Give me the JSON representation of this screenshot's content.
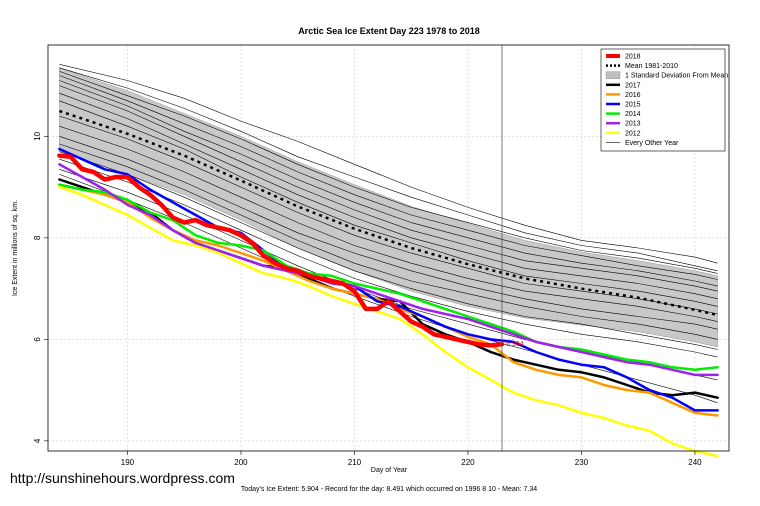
{
  "watermark": "http://sunshinehours.wordpress.com",
  "chart_data": {
    "type": "line",
    "title": "Arctic Sea Ice Extent Day 223 1978 to 2018",
    "xlabel": "Day of Year",
    "ylabel": "Ice Extent in millions of sq. km.",
    "subtitle": "Today's Ice Extent: 5.904  - Record for the day: 8.491 which occurred on 1996 8 10  - Mean: 7.34",
    "xlim": [
      183,
      243
    ],
    "ylim": [
      3.8,
      11.8
    ],
    "xticks": [
      190,
      200,
      210,
      220,
      230,
      240
    ],
    "yticks": [
      4,
      6,
      8,
      10
    ],
    "grid": true,
    "vline_x": 223,
    "current_label": "5.904",
    "legend_position": "top-right",
    "legend": [
      {
        "label": "2018",
        "color": "#ff0000",
        "style": "solid",
        "width": 4
      },
      {
        "label": "Mean 1981-2010",
        "color": "#000000",
        "style": "dotted",
        "width": 2.5
      },
      {
        "label": "1 Standard Deviation From Mean",
        "color": "#bebebe",
        "style": "box",
        "width": 0
      },
      {
        "label": "2017",
        "color": "#000000",
        "style": "solid",
        "width": 2.5
      },
      {
        "label": "2016",
        "color": "#ff9900",
        "style": "solid",
        "width": 2.5
      },
      {
        "label": "2015",
        "color": "#0000ff",
        "style": "solid",
        "width": 2.5
      },
      {
        "label": "2014",
        "color": "#00ee00",
        "style": "solid",
        "width": 2.5
      },
      {
        "label": "2013",
        "color": "#a020f0",
        "style": "solid",
        "width": 2.5
      },
      {
        "label": "2012",
        "color": "#ffff00",
        "style": "solid",
        "width": 2.5
      },
      {
        "label": "Every Other Year",
        "color": "#000000",
        "style": "solid",
        "width": 0.6
      }
    ],
    "mean": {
      "x": [
        184,
        190,
        195,
        200,
        205,
        210,
        215,
        220,
        225,
        230,
        235,
        240,
        242
      ],
      "y": [
        10.5,
        10.05,
        9.62,
        9.13,
        8.62,
        8.18,
        7.8,
        7.48,
        7.2,
        7.0,
        6.82,
        6.58,
        6.48
      ]
    },
    "std_band": {
      "x": [
        184,
        190,
        195,
        200,
        205,
        210,
        215,
        220,
        225,
        230,
        235,
        240,
        242
      ],
      "upper": [
        11.35,
        10.9,
        10.45,
        10.0,
        9.5,
        9.05,
        8.62,
        8.28,
        7.95,
        7.72,
        7.55,
        7.35,
        7.25
      ],
      "lower": [
        9.7,
        9.25,
        8.85,
        8.35,
        7.8,
        7.35,
        6.95,
        6.65,
        6.42,
        6.28,
        6.15,
        5.95,
        5.85
      ]
    },
    "other_years": [
      {
        "x": [
          184,
          190,
          195,
          200,
          205,
          210,
          215,
          220,
          225,
          230,
          235,
          240,
          242
        ],
        "y": [
          11.42,
          11.1,
          10.75,
          10.3,
          9.9,
          9.45,
          9.0,
          8.6,
          8.25,
          7.95,
          7.8,
          7.62,
          7.5
        ]
      },
      {
        "x": [
          184,
          190,
          195,
          200,
          205,
          210,
          215,
          220,
          225,
          230,
          235,
          240,
          242
        ],
        "y": [
          11.35,
          10.95,
          10.55,
          10.1,
          9.6,
          9.2,
          8.8,
          8.45,
          8.1,
          7.85,
          7.7,
          7.45,
          7.35
        ]
      },
      {
        "x": [
          184,
          190,
          195,
          200,
          205,
          210,
          215,
          220,
          225,
          230,
          235,
          240,
          242
        ],
        "y": [
          11.28,
          10.8,
          10.4,
          9.95,
          9.45,
          9.0,
          8.6,
          8.3,
          8.0,
          7.75,
          7.6,
          7.4,
          7.3
        ]
      },
      {
        "x": [
          184,
          190,
          195,
          200,
          205,
          210,
          215,
          220,
          225,
          230,
          235,
          240,
          242
        ],
        "y": [
          11.2,
          10.7,
          10.25,
          9.8,
          9.3,
          8.85,
          8.45,
          8.15,
          7.85,
          7.65,
          7.45,
          7.28,
          7.18
        ]
      },
      {
        "x": [
          184,
          190,
          195,
          200,
          205,
          210,
          215,
          220,
          225,
          230,
          235,
          240,
          242
        ],
        "y": [
          11.1,
          10.6,
          10.1,
          9.65,
          9.15,
          8.7,
          8.3,
          8.0,
          7.7,
          7.5,
          7.35,
          7.15,
          7.05
        ]
      },
      {
        "x": [
          184,
          190,
          195,
          200,
          205,
          210,
          215,
          220,
          225,
          230,
          235,
          240,
          242
        ],
        "y": [
          11.0,
          10.5,
          10.0,
          9.5,
          9.0,
          8.55,
          8.15,
          7.85,
          7.55,
          7.4,
          7.25,
          7.05,
          6.95
        ]
      },
      {
        "x": [
          184,
          190,
          195,
          200,
          205,
          210,
          215,
          220,
          225,
          230,
          235,
          240,
          242
        ],
        "y": [
          10.85,
          10.35,
          9.85,
          9.35,
          8.85,
          8.4,
          8.0,
          7.7,
          7.4,
          7.25,
          7.1,
          6.9,
          6.8
        ]
      },
      {
        "x": [
          184,
          190,
          195,
          200,
          205,
          210,
          215,
          220,
          225,
          230,
          235,
          240,
          242
        ],
        "y": [
          10.7,
          10.2,
          9.75,
          9.2,
          8.7,
          8.25,
          7.9,
          7.55,
          7.25,
          7.1,
          6.95,
          6.75,
          6.65
        ]
      },
      {
        "x": [
          184,
          190,
          195,
          200,
          205,
          210,
          215,
          220,
          225,
          230,
          235,
          240,
          242
        ],
        "y": [
          10.4,
          9.95,
          9.5,
          9.0,
          8.5,
          8.05,
          7.7,
          7.4,
          7.1,
          6.95,
          6.8,
          6.6,
          6.5
        ]
      },
      {
        "x": [
          184,
          190,
          195,
          200,
          205,
          210,
          215,
          220,
          225,
          230,
          235,
          240,
          242
        ],
        "y": [
          10.2,
          9.75,
          9.3,
          8.8,
          8.3,
          7.85,
          7.5,
          7.2,
          6.95,
          6.8,
          6.65,
          6.45,
          6.35
        ]
      },
      {
        "x": [
          184,
          190,
          195,
          200,
          205,
          210,
          215,
          220,
          225,
          230,
          235,
          240,
          242
        ],
        "y": [
          10.0,
          9.55,
          9.1,
          8.6,
          8.1,
          7.7,
          7.35,
          7.05,
          6.8,
          6.6,
          6.45,
          6.3,
          6.2
        ]
      },
      {
        "x": [
          184,
          190,
          195,
          200,
          205,
          210,
          215,
          220,
          225,
          230,
          235,
          240,
          242
        ],
        "y": [
          9.85,
          9.4,
          8.95,
          8.45,
          7.95,
          7.5,
          7.15,
          6.9,
          6.65,
          6.45,
          6.3,
          6.1,
          6.0
        ]
      },
      {
        "x": [
          184,
          190,
          195,
          200,
          205,
          210,
          215,
          220,
          225,
          230,
          235,
          240,
          242
        ],
        "y": [
          9.7,
          9.25,
          8.8,
          8.3,
          7.8,
          7.35,
          7.0,
          6.7,
          6.45,
          6.3,
          6.1,
          5.9,
          5.8
        ]
      },
      {
        "x": [
          184,
          190,
          195,
          200,
          205,
          210,
          215,
          220,
          225,
          230,
          235,
          240,
          242
        ],
        "y": [
          9.55,
          9.1,
          8.65,
          8.15,
          7.65,
          7.2,
          6.85,
          6.55,
          6.3,
          6.1,
          5.95,
          5.75,
          5.65
        ]
      },
      {
        "x": [
          184,
          190,
          195,
          200,
          205,
          210,
          215,
          220,
          225,
          230,
          235,
          240,
          242
        ],
        "y": [
          9.35,
          8.9,
          8.45,
          7.95,
          7.45,
          7.0,
          6.6,
          6.3,
          6.0,
          5.75,
          5.55,
          5.3,
          5.2
        ]
      },
      {
        "x": [
          184,
          190,
          195,
          200,
          205,
          210,
          215,
          220,
          225,
          230,
          235,
          240,
          242
        ],
        "y": [
          9.25,
          8.75,
          8.3,
          7.8,
          7.3,
          6.85,
          6.45,
          6.1,
          5.8,
          5.5,
          5.2,
          4.9,
          4.75
        ]
      }
    ],
    "series": [
      {
        "name": "2017",
        "color": "#000000",
        "width": 2.5,
        "x": [
          184,
          186,
          188,
          190,
          192,
          194,
          196,
          198,
          200,
          202,
          204,
          206,
          208,
          210,
          212,
          214,
          216,
          218,
          220,
          222,
          224,
          226,
          228,
          230,
          232,
          234,
          236,
          238,
          240,
          242
        ],
        "y": [
          9.15,
          9.0,
          8.85,
          8.7,
          8.5,
          8.15,
          7.9,
          7.75,
          7.6,
          7.45,
          7.4,
          7.2,
          7.0,
          6.9,
          6.8,
          6.75,
          6.3,
          6.1,
          5.95,
          5.75,
          5.6,
          5.5,
          5.4,
          5.35,
          5.25,
          5.1,
          4.95,
          4.9,
          4.95,
          4.85
        ]
      },
      {
        "name": "2016",
        "color": "#ff9900",
        "width": 2.5,
        "x": [
          184,
          186,
          188,
          190,
          192,
          194,
          196,
          198,
          200,
          202,
          204,
          206,
          208,
          210,
          212,
          214,
          216,
          218,
          220,
          222,
          224,
          226,
          228,
          230,
          232,
          234,
          236,
          238,
          240,
          242
        ],
        "y": [
          9.05,
          8.95,
          8.85,
          8.7,
          8.4,
          8.15,
          7.95,
          7.85,
          7.7,
          7.55,
          7.35,
          7.15,
          7.0,
          6.9,
          6.8,
          6.6,
          6.45,
          6.25,
          6.05,
          5.9,
          5.55,
          5.4,
          5.3,
          5.25,
          5.1,
          5.0,
          4.95,
          4.75,
          4.55,
          4.5
        ]
      },
      {
        "name": "2015",
        "color": "#0000ff",
        "width": 2.5,
        "x": [
          184,
          186,
          188,
          190,
          192,
          194,
          196,
          198,
          200,
          202,
          204,
          206,
          208,
          210,
          212,
          214,
          216,
          218,
          220,
          222,
          224,
          226,
          228,
          230,
          232,
          234,
          236,
          238,
          240,
          242
        ],
        "y": [
          9.75,
          9.55,
          9.35,
          9.25,
          8.95,
          8.7,
          8.45,
          8.2,
          8.1,
          7.75,
          7.4,
          7.25,
          7.15,
          7.05,
          6.75,
          6.65,
          6.45,
          6.25,
          6.1,
          6.0,
          5.95,
          5.75,
          5.6,
          5.5,
          5.45,
          5.25,
          5.0,
          4.85,
          4.6,
          4.6
        ]
      },
      {
        "name": "2014",
        "color": "#00ee00",
        "width": 2.5,
        "x": [
          184,
          186,
          188,
          190,
          192,
          194,
          196,
          198,
          200,
          202,
          204,
          206,
          208,
          210,
          212,
          214,
          216,
          218,
          220,
          222,
          224,
          226,
          228,
          230,
          232,
          234,
          236,
          238,
          240,
          242
        ],
        "y": [
          9.05,
          8.95,
          8.9,
          8.75,
          8.5,
          8.35,
          8.05,
          7.9,
          7.85,
          7.75,
          7.45,
          7.3,
          7.25,
          7.1,
          7.0,
          6.9,
          6.75,
          6.6,
          6.45,
          6.3,
          6.15,
          5.95,
          5.85,
          5.8,
          5.7,
          5.6,
          5.55,
          5.45,
          5.4,
          5.45
        ]
      },
      {
        "name": "2013",
        "color": "#a020f0",
        "width": 2.5,
        "x": [
          184,
          186,
          188,
          190,
          192,
          194,
          196,
          198,
          200,
          202,
          204,
          206,
          208,
          210,
          212,
          214,
          216,
          218,
          220,
          222,
          224,
          226,
          228,
          230,
          232,
          234,
          236,
          238,
          240,
          242
        ],
        "y": [
          9.45,
          9.2,
          8.95,
          8.65,
          8.45,
          8.15,
          7.9,
          7.75,
          7.6,
          7.45,
          7.35,
          7.25,
          7.1,
          7.05,
          6.9,
          6.75,
          6.6,
          6.5,
          6.4,
          6.25,
          6.1,
          5.95,
          5.85,
          5.75,
          5.65,
          5.55,
          5.5,
          5.4,
          5.3,
          5.3
        ]
      },
      {
        "name": "2012",
        "color": "#ffff00",
        "width": 2.5,
        "x": [
          184,
          186,
          188,
          190,
          192,
          194,
          196,
          198,
          200,
          202,
          204,
          206,
          208,
          210,
          212,
          214,
          216,
          218,
          220,
          222,
          224,
          226,
          228,
          230,
          232,
          234,
          236,
          238,
          240,
          242
        ],
        "y": [
          9.0,
          8.85,
          8.65,
          8.45,
          8.2,
          7.95,
          7.85,
          7.7,
          7.5,
          7.3,
          7.2,
          7.05,
          6.85,
          6.7,
          6.55,
          6.4,
          6.1,
          5.75,
          5.45,
          5.2,
          4.95,
          4.8,
          4.7,
          4.55,
          4.45,
          4.3,
          4.2,
          3.95,
          3.8,
          3.7
        ]
      },
      {
        "name": "2018",
        "color": "#ff0000",
        "width": 4.5,
        "x": [
          184,
          185,
          186,
          187,
          188,
          189,
          190,
          191,
          192,
          193,
          194,
          195,
          196,
          197,
          198,
          199,
          200,
          201,
          202,
          203,
          204,
          205,
          206,
          207,
          208,
          209,
          210,
          211,
          212,
          213,
          214,
          215,
          216,
          217,
          218,
          219,
          220,
          221,
          222,
          223
        ],
        "y": [
          9.62,
          9.6,
          9.35,
          9.3,
          9.15,
          9.2,
          9.2,
          9.0,
          8.85,
          8.65,
          8.4,
          8.3,
          8.35,
          8.25,
          8.2,
          8.15,
          8.05,
          7.9,
          7.65,
          7.5,
          7.4,
          7.35,
          7.25,
          7.2,
          7.15,
          7.1,
          6.95,
          6.6,
          6.6,
          6.75,
          6.55,
          6.35,
          6.25,
          6.1,
          6.05,
          6.0,
          5.95,
          5.9,
          5.88,
          5.904
        ]
      }
    ]
  }
}
